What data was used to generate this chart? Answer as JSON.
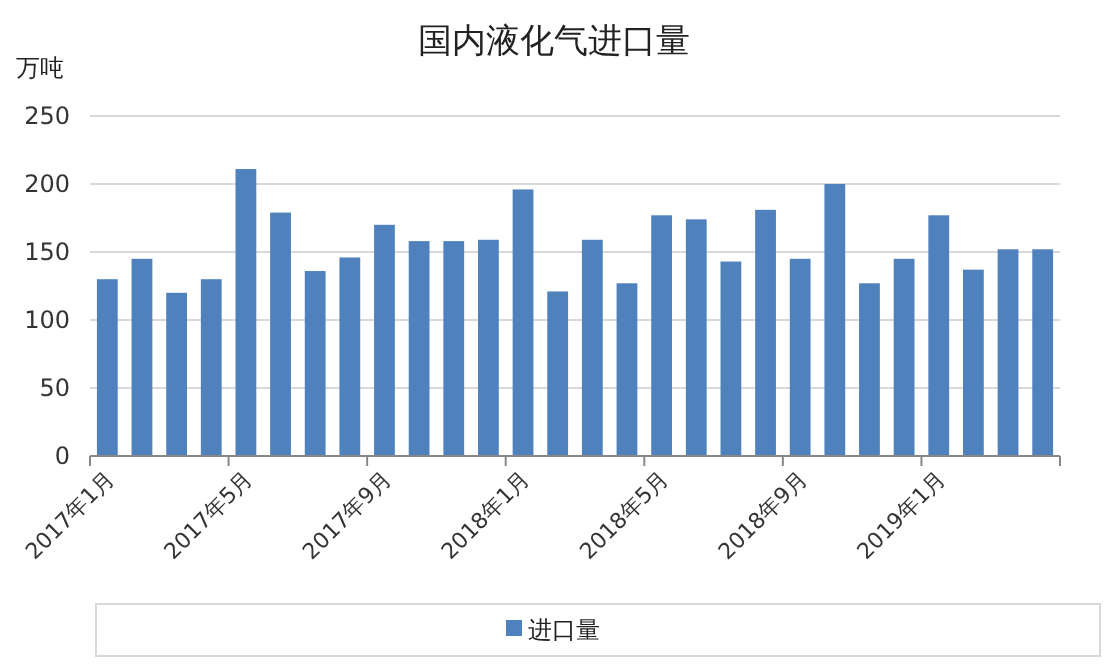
{
  "chart_data": {
    "type": "bar",
    "title": "国内液化气进口量",
    "ylabel": "万吨",
    "categories": [
      "2017年1月",
      null,
      null,
      null,
      "2017年5月",
      null,
      null,
      null,
      "2017年9月",
      null,
      null,
      null,
      "2018年1月",
      null,
      null,
      null,
      "2018年5月",
      null,
      null,
      null,
      "2018年9月",
      null,
      null,
      null,
      "2019年1月",
      null,
      null,
      null
    ],
    "series": [
      {
        "name": "进口量",
        "color": "#4f81bd",
        "values": [
          130,
          145,
          120,
          130,
          211,
          179,
          136,
          146,
          170,
          158,
          158,
          159,
          196,
          121,
          159,
          127,
          177,
          174,
          143,
          181,
          145,
          200,
          127,
          145,
          177,
          137,
          152,
          152
        ]
      }
    ],
    "ylim": [
      0,
      250
    ],
    "yticks": [
      0,
      50,
      100,
      150,
      200,
      250
    ],
    "grid": "y",
    "legend": "bottom"
  }
}
